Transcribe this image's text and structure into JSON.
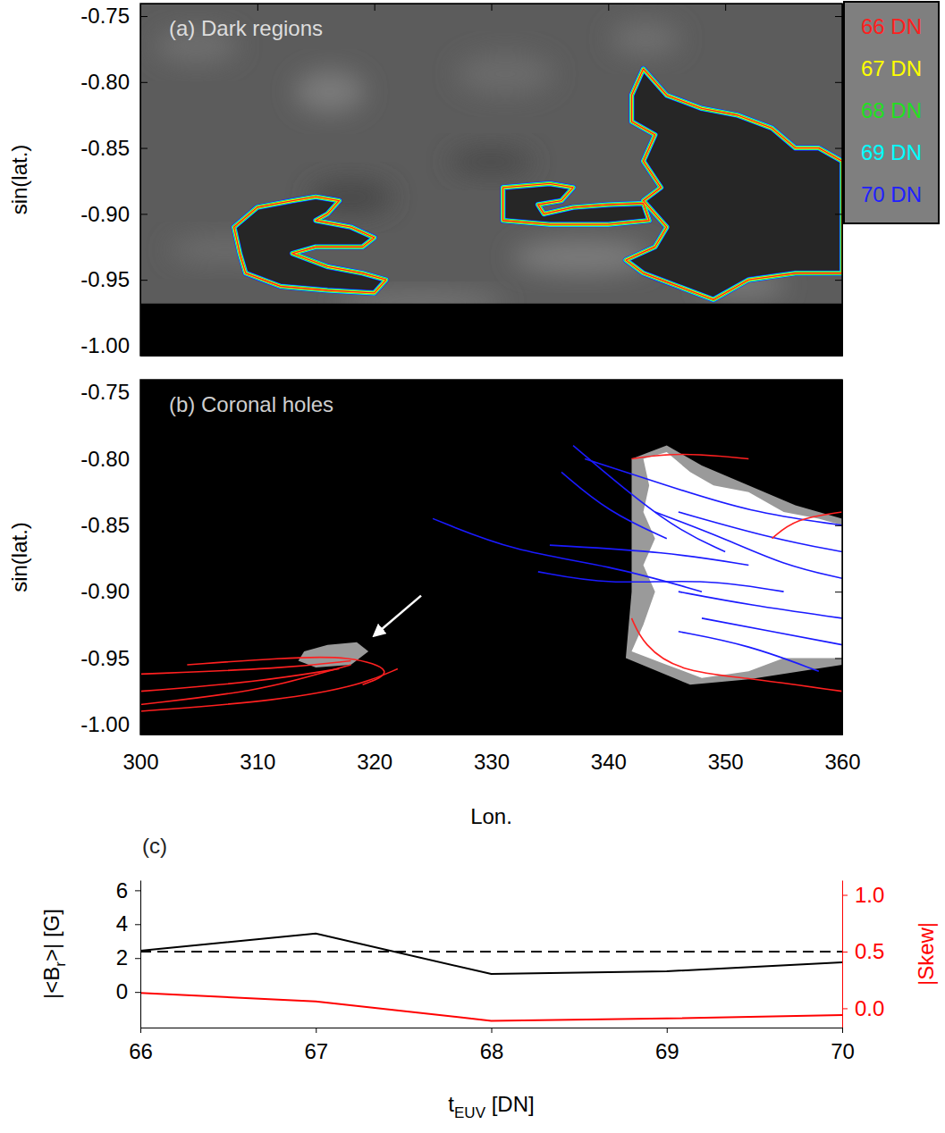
{
  "chart_data": [
    {
      "type": "contour",
      "title": "(a) Dark regions",
      "ylabel": "sin(lat.)",
      "xlim": [
        300,
        360
      ],
      "ylim": [
        -1.0075,
        -0.7405
      ],
      "xticks": [
        300,
        310,
        320,
        330,
        340,
        350,
        360
      ],
      "yticks": [
        {
          "value": -0.75,
          "label": "-0.75"
        },
        {
          "value": -0.8,
          "label": "-0.80"
        },
        {
          "value": -0.85,
          "label": "-0.85"
        },
        {
          "value": -0.9,
          "label": "-0.90"
        },
        {
          "value": -0.95,
          "label": "-0.95"
        },
        {
          "value": -1.0,
          "label": "-1.00"
        }
      ],
      "tick_labels": "y",
      "no_data_below": -0.968,
      "contour_levels": [
        {
          "value": 66,
          "label": "66 DN",
          "color": "#ff2020"
        },
        {
          "value": 67,
          "label": "67 DN",
          "color": "#ffff00"
        },
        {
          "value": 68,
          "label": "68 DN",
          "color": "#20e020"
        },
        {
          "value": 69,
          "label": "69 DN",
          "color": "#00ffff"
        },
        {
          "value": 70,
          "label": "70 DN",
          "color": "#2020ff"
        }
      ],
      "regions": [
        [
          [
            308,
            -0.91
          ],
          [
            310,
            -0.895
          ],
          [
            313,
            -0.89
          ],
          [
            315,
            -0.887
          ],
          [
            317,
            -0.89
          ],
          [
            316,
            -0.9
          ],
          [
            315,
            -0.905
          ],
          [
            318,
            -0.91
          ],
          [
            320,
            -0.918
          ],
          [
            319,
            -0.925
          ],
          [
            315,
            -0.925
          ],
          [
            313,
            -0.93
          ],
          [
            316,
            -0.94
          ],
          [
            319,
            -0.945
          ],
          [
            321,
            -0.95
          ],
          [
            320,
            -0.96
          ],
          [
            316,
            -0.958
          ],
          [
            312,
            -0.955
          ],
          [
            309,
            -0.945
          ],
          [
            308.5,
            -0.93
          ]
        ],
        [
          [
            331,
            -0.88
          ],
          [
            335,
            -0.877
          ],
          [
            337,
            -0.88
          ],
          [
            336,
            -0.89
          ],
          [
            334,
            -0.893
          ],
          [
            334.5,
            -0.9
          ],
          [
            337,
            -0.895
          ],
          [
            340,
            -0.893
          ],
          [
            343,
            -0.892
          ],
          [
            343.5,
            -0.905
          ],
          [
            340,
            -0.908
          ],
          [
            335,
            -0.908
          ],
          [
            331,
            -0.905
          ]
        ],
        [
          [
            342,
            -0.81
          ],
          [
            343,
            -0.79
          ],
          [
            345,
            -0.81
          ],
          [
            348,
            -0.82
          ],
          [
            351,
            -0.825
          ],
          [
            354,
            -0.835
          ],
          [
            356,
            -0.85
          ],
          [
            358,
            -0.85
          ],
          [
            360,
            -0.86
          ],
          [
            360,
            -0.945
          ],
          [
            356,
            -0.945
          ],
          [
            352,
            -0.95
          ],
          [
            349,
            -0.965
          ],
          [
            346,
            -0.955
          ],
          [
            343,
            -0.945
          ],
          [
            341.5,
            -0.935
          ],
          [
            344,
            -0.925
          ],
          [
            345,
            -0.91
          ],
          [
            343,
            -0.89
          ],
          [
            344.5,
            -0.88
          ],
          [
            343,
            -0.86
          ],
          [
            344,
            -0.84
          ],
          [
            342,
            -0.83
          ]
        ]
      ]
    },
    {
      "type": "map",
      "title": "(b) Coronal holes",
      "xlabel": "Lon.",
      "ylabel": "sin(lat.)",
      "xlim": [
        300,
        360
      ],
      "ylim": [
        -1.0075,
        -0.7405
      ],
      "xticks": [
        300,
        310,
        320,
        330,
        340,
        350,
        360
      ],
      "yticks": [
        {
          "value": -0.75,
          "label": "-0.75"
        },
        {
          "value": -0.8,
          "label": "-0.80"
        },
        {
          "value": -0.85,
          "label": "-0.85"
        },
        {
          "value": -0.9,
          "label": "-0.90"
        },
        {
          "value": -0.95,
          "label": "-0.95"
        },
        {
          "value": -1.0,
          "label": "-1.00"
        }
      ],
      "coronal_holes": [
        {
          "color": "#9a9a9a",
          "points": [
            [
              342,
              -0.8
            ],
            [
              345,
              -0.79
            ],
            [
              348,
              -0.805
            ],
            [
              352,
              -0.82
            ],
            [
              356,
              -0.835
            ],
            [
              360,
              -0.845
            ],
            [
              360,
              -0.955
            ],
            [
              352,
              -0.966
            ],
            [
              347,
              -0.97
            ],
            [
              341.5,
              -0.95
            ],
            [
              342,
              -0.9
            ],
            [
              342,
              -0.84
            ]
          ]
        },
        {
          "color": "#ffffff",
          "points": [
            [
              343,
              -0.8
            ],
            [
              345,
              -0.795
            ],
            [
              347,
              -0.81
            ],
            [
              349,
              -0.82
            ],
            [
              352,
              -0.825
            ],
            [
              355,
              -0.84
            ],
            [
              358,
              -0.845
            ],
            [
              360,
              -0.85
            ],
            [
              360,
              -0.95
            ],
            [
              355,
              -0.95
            ],
            [
              352,
              -0.96
            ],
            [
              348,
              -0.965
            ],
            [
              345,
              -0.955
            ],
            [
              342,
              -0.945
            ],
            [
              343,
              -0.925
            ],
            [
              344,
              -0.9
            ],
            [
              343,
              -0.88
            ],
            [
              344,
              -0.86
            ],
            [
              343,
              -0.84
            ],
            [
              343.5,
              -0.82
            ]
          ]
        },
        {
          "color": "#9a9a9a",
          "points": [
            [
              314,
              -0.945
            ],
            [
              316,
              -0.94
            ],
            [
              318.5,
              -0.938
            ],
            [
              319.5,
              -0.945
            ],
            [
              318,
              -0.955
            ],
            [
              315,
              -0.957
            ],
            [
              313.5,
              -0.952
            ]
          ]
        }
      ],
      "field_lines": [
        {
          "color": "#1a1aff",
          "points": [
            [
              345,
              -0.86
            ],
            [
              340,
              -0.84
            ],
            [
              336,
              -0.81
            ]
          ]
        },
        {
          "color": "#1a1aff",
          "points": [
            [
              350,
              -0.87
            ],
            [
              345,
              -0.85
            ],
            [
              337,
              -0.79
            ]
          ]
        },
        {
          "color": "#1a1aff",
          "points": [
            [
              348,
              -0.9
            ],
            [
              340,
              -0.88
            ],
            [
              332,
              -0.87
            ],
            [
              325,
              -0.845
            ]
          ]
        },
        {
          "color": "#1a1aff",
          "points": [
            [
              352,
              -0.88
            ],
            [
              345,
              -0.87
            ],
            [
              335,
              -0.865
            ]
          ]
        },
        {
          "color": "#1a1aff",
          "points": [
            [
              355,
              -0.9
            ],
            [
              348,
              -0.89
            ],
            [
              340,
              -0.895
            ],
            [
              334,
              -0.885
            ]
          ]
        },
        {
          "color": "#1a1aff",
          "points": [
            [
              360,
              -0.85
            ],
            [
              352,
              -0.84
            ],
            [
              345,
              -0.82
            ],
            [
              338,
              -0.8
            ]
          ]
        },
        {
          "color": "#1a1aff",
          "points": [
            [
              360,
              -0.87
            ],
            [
              354,
              -0.86
            ],
            [
              346,
              -0.84
            ]
          ]
        },
        {
          "color": "#1a1aff",
          "points": [
            [
              360,
              -0.92
            ],
            [
              352,
              -0.91
            ],
            [
              346,
              -0.9
            ]
          ]
        },
        {
          "color": "#1a1aff",
          "points": [
            [
              360,
              -0.94
            ],
            [
              354,
              -0.93
            ],
            [
              348,
              -0.92
            ]
          ]
        },
        {
          "color": "#1a1aff",
          "points": [
            [
              358,
              -0.96
            ],
            [
              352,
              -0.94
            ],
            [
              346,
              -0.93
            ]
          ]
        },
        {
          "color": "#1a1aff",
          "points": [
            [
              360,
              -0.89
            ],
            [
              355,
              -0.88
            ],
            [
              350,
              -0.86
            ],
            [
              344,
              -0.84
            ]
          ]
        },
        {
          "color": "#ff2020",
          "points": [
            [
              300,
              -0.985
            ],
            [
              310,
              -0.975
            ],
            [
              316,
              -0.96
            ],
            [
              318,
              -0.955
            ]
          ]
        },
        {
          "color": "#ff2020",
          "points": [
            [
              300,
              -0.975
            ],
            [
              310,
              -0.968
            ],
            [
              317,
              -0.958
            ]
          ]
        },
        {
          "color": "#ff2020",
          "points": [
            [
              300,
              -0.962
            ],
            [
              312,
              -0.958
            ],
            [
              318,
              -0.952
            ]
          ]
        },
        {
          "color": "#ff2020",
          "points": [
            [
              304,
              -0.955
            ],
            [
              312,
              -0.95
            ],
            [
              318,
              -0.948
            ],
            [
              322,
              -0.96
            ],
            [
              319,
              -0.97
            ]
          ]
        },
        {
          "color": "#ff2020",
          "points": [
            [
              300,
              -0.99
            ],
            [
              312,
              -0.982
            ],
            [
              319,
              -0.97
            ],
            [
              322,
              -0.958
            ]
          ]
        },
        {
          "color": "#ff2020",
          "points": [
            [
              342,
              -0.92
            ],
            [
              343,
              -0.94
            ],
            [
              346,
              -0.96
            ],
            [
              352,
              -0.965
            ],
            [
              360,
              -0.975
            ]
          ]
        },
        {
          "color": "#ff2020",
          "points": [
            [
              360,
              -0.84
            ],
            [
              356,
              -0.845
            ],
            [
              354,
              -0.86
            ]
          ]
        },
        {
          "color": "#ff2020",
          "points": [
            [
              342,
              -0.8
            ],
            [
              346,
              -0.795
            ],
            [
              352,
              -0.8
            ]
          ]
        }
      ],
      "arrow": {
        "from": [
          324,
          -0.903
        ],
        "to": [
          320,
          -0.933
        ]
      }
    },
    {
      "type": "line",
      "title": "(c)",
      "x": [
        66,
        67,
        68,
        69,
        70
      ],
      "xlim": [
        66,
        70
      ],
      "xticks": [
        66,
        67,
        68,
        69,
        70
      ],
      "xlabel": [
        {
          "text": "t"
        },
        {
          "text": "EUV",
          "sub": true
        },
        {
          "text": " [DN]"
        }
      ],
      "ylabel": [
        {
          "text": "|<B"
        },
        {
          "text": "r",
          "sub": true
        },
        {
          "text": ">| [G]"
        }
      ],
      "y2label": [
        {
          "text": "|Skew|"
        }
      ],
      "ylim": [
        -2.1,
        6.6
      ],
      "yticks": [
        0,
        2,
        4,
        6
      ],
      "y2lim": [
        -0.17,
        1.13
      ],
      "y2ticks": [
        {
          "value": 0,
          "label": "0.0"
        },
        {
          "value": 0.5,
          "label": "0.5"
        },
        {
          "value": 1,
          "label": "1.0"
        }
      ],
      "series": [
        {
          "color": "#000000",
          "values": [
            2.44,
            3.45,
            1.06,
            1.22,
            1.75
          ]
        },
        {
          "color": "#ff0000",
          "values": [
            0.135,
            0.06,
            -0.11,
            -0.09,
            -0.06
          ],
          "axis": "y2"
        },
        {
          "color": "#000000",
          "values": [
            0.5,
            0.5,
            0.5,
            0.5,
            0.5
          ],
          "axis": "y2",
          "line_style": "dashed"
        }
      ]
    }
  ]
}
